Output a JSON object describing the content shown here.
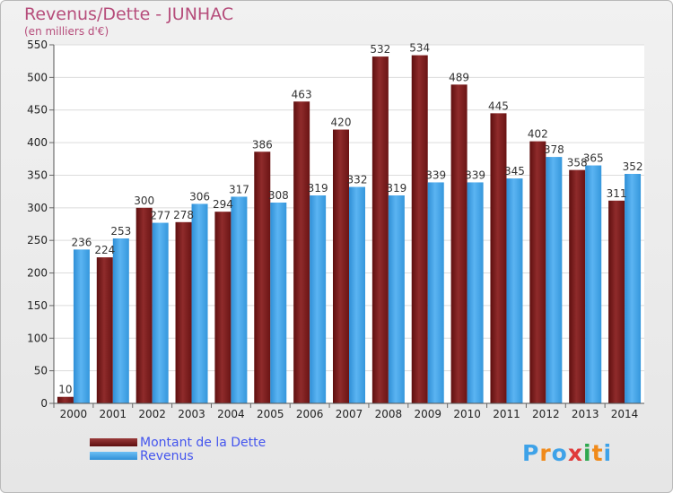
{
  "title": "Revenus/Dette - JUNHAC",
  "subtitle": "(en milliers d'€)",
  "legend": [
    {
      "label": "Montant de la Dette",
      "color": "#7a1a1a"
    },
    {
      "label": "Revenus",
      "color": "#3ea2e8"
    }
  ],
  "logo": {
    "text": "Proxiti",
    "colors": [
      "#3ea2e8",
      "#f08a1a",
      "#3ea2e8",
      "#e03a3a",
      "#2fa84f",
      "#f08a1a",
      "#3ea2e8"
    ]
  },
  "chart_data": {
    "type": "bar",
    "categories": [
      "2000",
      "2001",
      "2002",
      "2003",
      "2004",
      "2005",
      "2006",
      "2007",
      "2008",
      "2009",
      "2010",
      "2011",
      "2012",
      "2013",
      "2014"
    ],
    "series": [
      {
        "name": "Montant de la Dette",
        "color": "#7a1a1a",
        "values": [
          10,
          224,
          300,
          278,
          294,
          386,
          463,
          420,
          532,
          534,
          489,
          445,
          402,
          358,
          311
        ]
      },
      {
        "name": "Revenus",
        "color": "#3ea2e8",
        "values": [
          236,
          253,
          277,
          306,
          317,
          308,
          319,
          332,
          319,
          339,
          339,
          345,
          378,
          365,
          352
        ]
      }
    ],
    "ylim": [
      0,
      550
    ],
    "yticks": [
      0,
      50,
      100,
      150,
      200,
      250,
      300,
      350,
      400,
      450,
      500,
      550
    ],
    "grid": true,
    "legend_position": "bottom-left"
  }
}
